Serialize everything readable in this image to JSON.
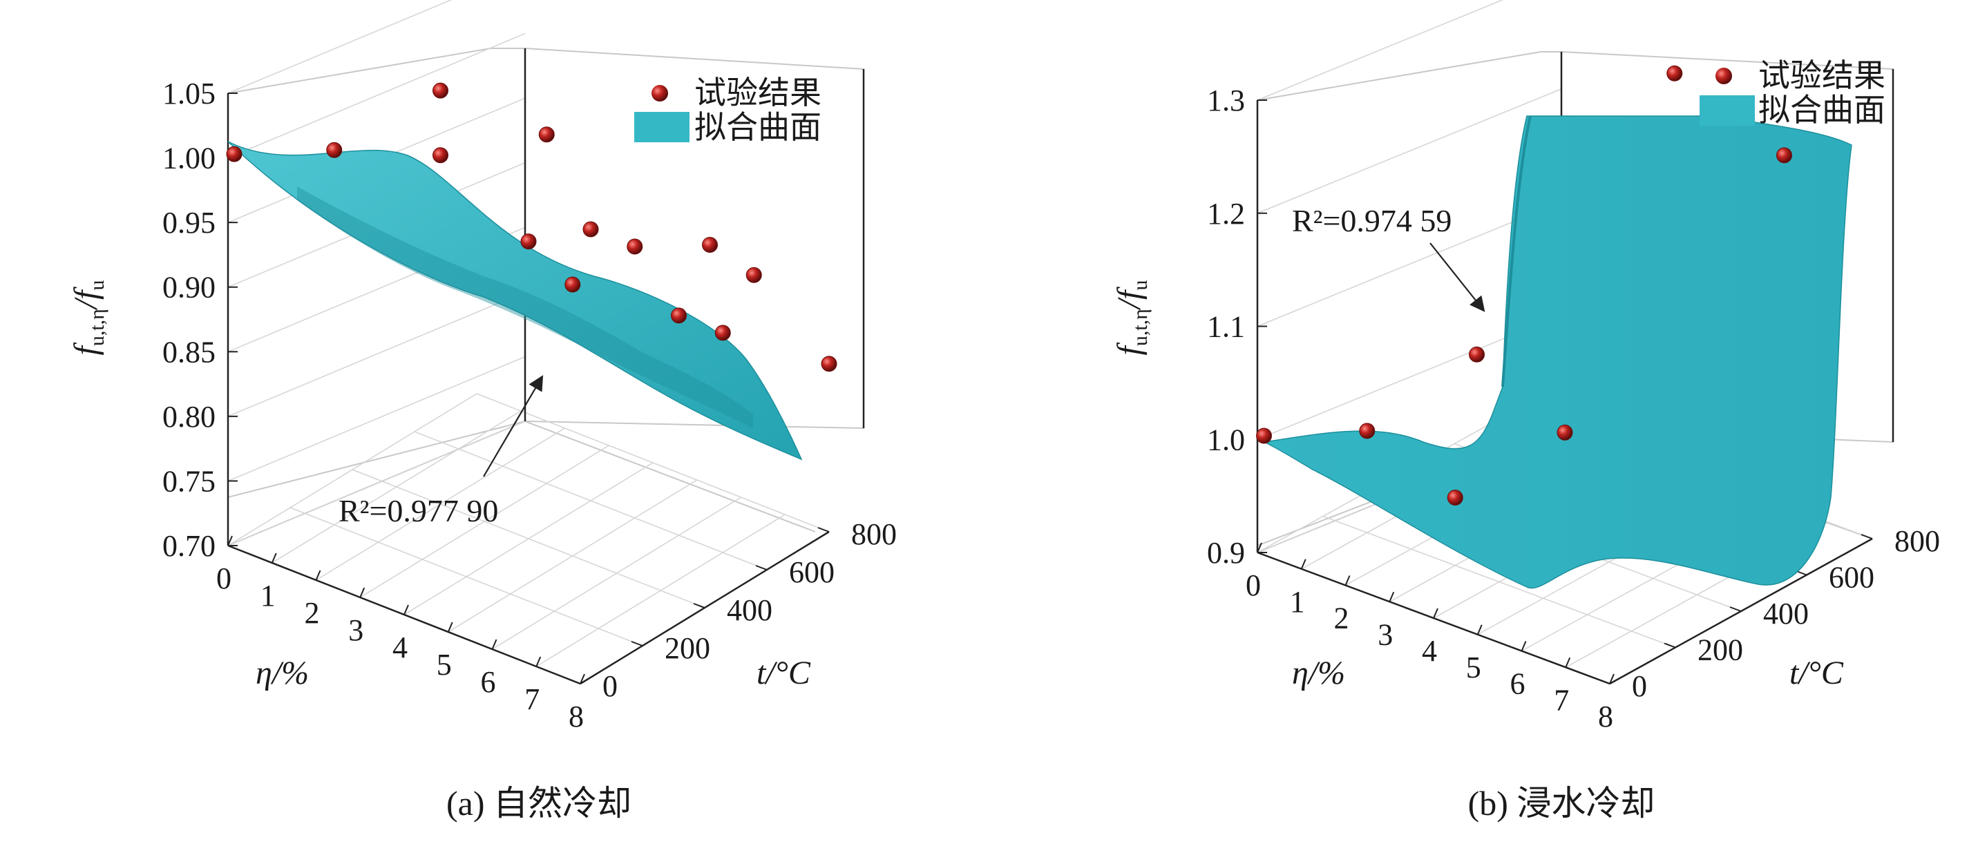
{
  "colors": {
    "surface": "#35b8c6",
    "surface_dark": "#23a2b0",
    "point": "#c0231f",
    "axis": "#222222",
    "grid": "#c8c8c8"
  },
  "legend": {
    "points": "试验结果",
    "surface": "拟合曲面"
  },
  "chart_data": [
    {
      "type": "scatter",
      "caption": "(a) 自然冷却",
      "zlabel": "f",
      "zlabel_sub": "u,t,η",
      "zlabel_den": "/f",
      "zlabel_den_sub": "u",
      "xlabel": "η/%",
      "ylabel": "t/°C",
      "annotation": "R²=0.977 90",
      "z_ticks": [
        "0.70",
        "0.75",
        "0.80",
        "0.85",
        "0.90",
        "0.95",
        "1.00",
        "1.05"
      ],
      "x_ticks": [
        "0",
        "1",
        "2",
        "3",
        "4",
        "5",
        "6",
        "7",
        "8"
      ],
      "y_ticks": [
        "0",
        "200",
        "400",
        "600",
        "800"
      ],
      "zlim": [
        0.7,
        1.05
      ],
      "xlim": [
        0,
        8
      ],
      "ylim": [
        0,
        800
      ],
      "points_estimated": [
        {
          "eta": 0,
          "t": 20,
          "z": 1.0
        },
        {
          "eta": 1,
          "t": 200,
          "z": 0.99
        },
        {
          "eta": 2,
          "t": 400,
          "z": 1.02
        },
        {
          "eta": 2,
          "t": 400,
          "z": 0.97
        },
        {
          "eta": 3,
          "t": 600,
          "z": 0.97
        },
        {
          "eta": 4,
          "t": 400,
          "z": 0.93
        },
        {
          "eta": 4,
          "t": 600,
          "z": 0.91
        },
        {
          "eta": 5,
          "t": 400,
          "z": 0.91
        },
        {
          "eta": 5,
          "t": 600,
          "z": 0.91
        },
        {
          "eta": 6,
          "t": 600,
          "z": 0.87
        },
        {
          "eta": 6,
          "t": 700,
          "z": 0.91
        },
        {
          "eta": 7,
          "t": 600,
          "z": 0.87
        },
        {
          "eta": 7,
          "t": 700,
          "z": 0.9
        },
        {
          "eta": 8,
          "t": 800,
          "z": 0.83
        }
      ]
    },
    {
      "type": "scatter",
      "caption": "(b) 浸水冷却",
      "zlabel": "f",
      "zlabel_sub": "u,t,η",
      "zlabel_den": "/f",
      "zlabel_den_sub": "u",
      "xlabel": "η/%",
      "ylabel": "t/°C",
      "annotation": "R²=0.974 59",
      "z_ticks": [
        "0.9",
        "1.0",
        "1.1",
        "1.2",
        "1.3"
      ],
      "x_ticks": [
        "0",
        "1",
        "2",
        "3",
        "4",
        "5",
        "6",
        "7",
        "8"
      ],
      "y_ticks": [
        "0",
        "200",
        "400",
        "600",
        "800"
      ],
      "zlim": [
        0.9,
        1.3
      ],
      "xlim": [
        0,
        8
      ],
      "ylim": [
        0,
        800
      ],
      "points_estimated": [
        {
          "eta": 0,
          "t": 20,
          "z": 1.0
        },
        {
          "eta": 1,
          "t": 200,
          "z": 0.99
        },
        {
          "eta": 2,
          "t": 400,
          "z": 1.04
        },
        {
          "eta": 3,
          "t": 200,
          "z": 0.96
        },
        {
          "eta": 4,
          "t": 400,
          "z": 1.0
        },
        {
          "eta": 5,
          "t": 600,
          "z": 1.3
        },
        {
          "eta": 6,
          "t": 800,
          "z": 1.21
        }
      ]
    }
  ]
}
